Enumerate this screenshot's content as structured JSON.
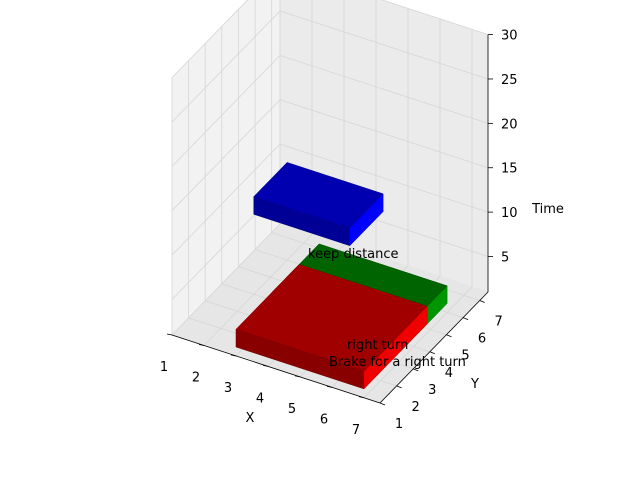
{
  "chart_data": {
    "type": "3d-bar",
    "title": "",
    "xlabel": "X",
    "ylabel": "Y",
    "zlabel": "Time",
    "xlim": [
      1,
      7.5
    ],
    "ylim": [
      1,
      7.5
    ],
    "zlim": [
      1,
      30
    ],
    "xticks": [
      1,
      2,
      3,
      4,
      5,
      6,
      7
    ],
    "yticks": [
      1,
      2,
      3,
      4,
      5,
      6,
      7
    ],
    "zticks": [
      5,
      10,
      15,
      20,
      25,
      30
    ],
    "grid": true,
    "boxes": [
      {
        "label": "keep distance",
        "x": [
          2,
          5
        ],
        "y": [
          4,
          6
        ],
        "z": [
          10,
          12
        ],
        "color": "#0000b0"
      },
      {
        "label": "right turn",
        "x": [
          3,
          7
        ],
        "y": [
          3.2,
          6
        ],
        "z": [
          2,
          4
        ],
        "color": "#006400"
      },
      {
        "label": "Brake for a right turn",
        "x": [
          3,
          7
        ],
        "y": [
          1,
          4.8
        ],
        "z": [
          2,
          4
        ],
        "color": "#a00000"
      }
    ],
    "annotations": [
      "keep distance",
      "right turn",
      "Brake for a right turn"
    ]
  },
  "colors": {
    "pane_left": "#f2f2f2",
    "pane_back": "#ebebeb",
    "pane_floor": "#e6e6e6",
    "grid": "#d6d6d6",
    "axis_line": "#000000"
  }
}
